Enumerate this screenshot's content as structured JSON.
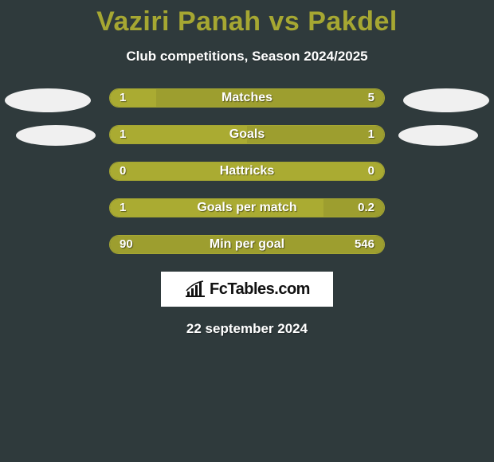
{
  "background_color": "#2f3a3c",
  "title": "Vaziri Panah vs Pakdel",
  "title_color": "#a6a732",
  "subtitle": "Club competitions, Season 2024/2025",
  "subtitle_color": "#ffffff",
  "avatar_color": "#f0f0f0",
  "logo_text": "FcTables.com",
  "date_text": "22 september 2024",
  "date_color": "#ffffff",
  "bar_border_color": "#a6a732",
  "bar_left_color": "#aaab32",
  "bar_right_color": "#9d9e2f",
  "bar_empty_color": "transparent",
  "label_color": "#ffffff",
  "stats": [
    {
      "label": "Matches",
      "left_val": "1",
      "right_val": "5",
      "left_pct": 17,
      "right_pct": 83
    },
    {
      "label": "Goals",
      "left_val": "1",
      "right_val": "1",
      "left_pct": 50,
      "right_pct": 50
    },
    {
      "label": "Hattricks",
      "left_val": "0",
      "right_val": "0",
      "left_pct": 100,
      "right_pct": 0
    },
    {
      "label": "Goals per match",
      "left_val": "1",
      "right_val": "0.2",
      "left_pct": 78,
      "right_pct": 22
    },
    {
      "label": "Min per goal",
      "left_val": "90",
      "right_val": "546",
      "left_pct": 0,
      "right_pct": 100
    }
  ]
}
